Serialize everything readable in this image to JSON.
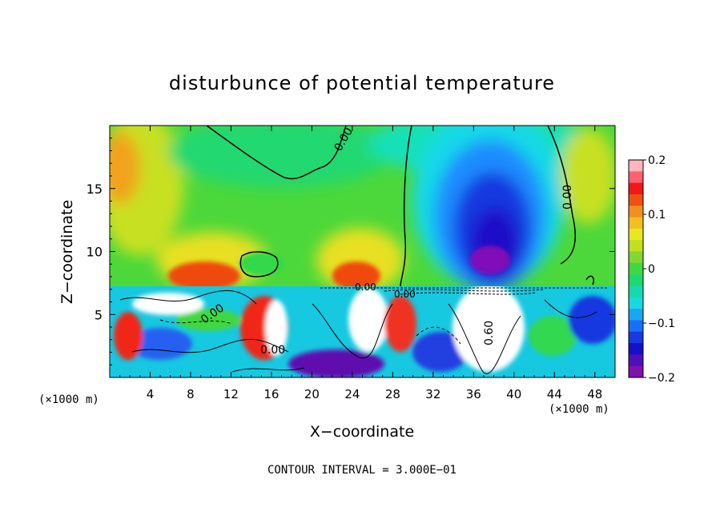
{
  "chart_data": {
    "type": "heatmap",
    "title": "disturbunce of potential temperature",
    "xlabel": "X−coordinate",
    "ylabel": "Z−coordinate",
    "x_unit": "(×1000 m)",
    "y_unit": "(×1000 m)",
    "xlim": [
      0,
      50
    ],
    "ylim": [
      0,
      20
    ],
    "x_ticks": [
      4,
      8,
      12,
      16,
      20,
      24,
      28,
      32,
      36,
      40,
      44,
      48
    ],
    "y_ticks": [
      5,
      10,
      15
    ],
    "colorbar": {
      "range": [
        -0.2,
        0.2
      ],
      "tick_values": [
        0.2,
        0.1,
        0,
        -0.1,
        -0.2
      ],
      "tick_labels": [
        "0.2",
        "0.1",
        "0",
        "−0.1",
        "−0.2"
      ]
    },
    "contour_labels": [
      {
        "text": "0.00",
        "x": 23,
        "z": 18.3
      },
      {
        "text": "0.00",
        "x": 45.2,
        "z": 14.8
      },
      {
        "text": "0.00",
        "x": 9.7,
        "z": 5.6
      },
      {
        "text": "0.00",
        "x": 16.5,
        "z": 2.2
      },
      {
        "text": "0.00",
        "x": 25.3,
        "z": 7.1
      },
      {
        "text": "0.00",
        "x": 29.8,
        "z": 6.8
      },
      {
        "text": "0.60",
        "x": 37.2,
        "z": 3.1
      }
    ],
    "footer": "CONTOUR INTERVAL = 3.000E−01"
  }
}
